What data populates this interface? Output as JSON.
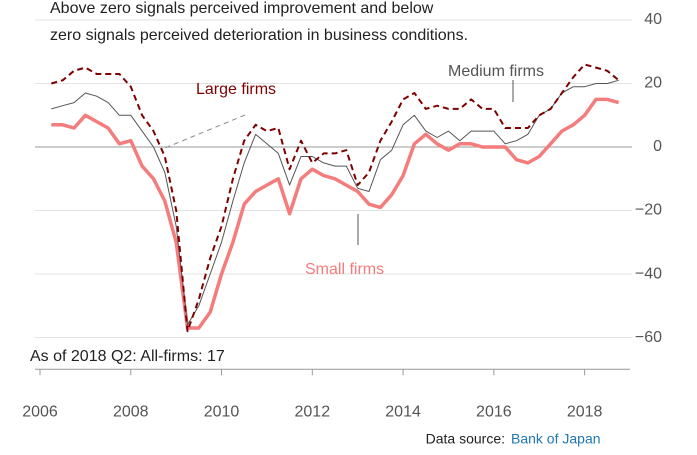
{
  "chart_data": {
    "type": "line",
    "subtitle": [
      "Above zero signals perceived improvement and below",
      "zero signals perceived deterioration in business conditions."
    ],
    "annotations": [
      "Large firms",
      "Medium firms",
      "Small firms",
      "As of 2018 Q2: All-firms: 17"
    ],
    "source_label": "Data source:",
    "source_link": "Bank of Japan",
    "x": [
      2006.25,
      2006.5,
      2006.75,
      2007,
      2007.25,
      2007.5,
      2007.75,
      2008,
      2008.25,
      2008.5,
      2008.75,
      2009,
      2009.25,
      2009.5,
      2009.75,
      2010,
      2010.25,
      2010.5,
      2010.75,
      2011,
      2011.25,
      2011.5,
      2011.75,
      2012,
      2012.25,
      2012.5,
      2012.75,
      2013,
      2013.25,
      2013.5,
      2013.75,
      2014,
      2014.25,
      2014.5,
      2014.75,
      2015,
      2015.25,
      2015.5,
      2015.75,
      2016,
      2016.25,
      2016.5,
      2016.75,
      2017,
      2017.25,
      2017.5,
      2017.75,
      2018,
      2018.25,
      2018.5,
      2018.75
    ],
    "series": [
      {
        "name": "Small firms",
        "color": "#f47c7c",
        "width": 3.5,
        "dash": false,
        "values": [
          7,
          7,
          6,
          10,
          8,
          6,
          1,
          2,
          -6,
          -10,
          -17,
          -30,
          -57,
          -57,
          -52,
          -40,
          -30,
          -18,
          -14,
          -12,
          -10,
          -21,
          -10,
          -7,
          -9,
          -10,
          -12,
          -14,
          -18,
          -19,
          -15,
          -9,
          1,
          4,
          1,
          -1,
          1,
          1,
          0,
          0,
          0,
          -4,
          -5,
          -3,
          1,
          5,
          7,
          10,
          15,
          15,
          14
        ]
      },
      {
        "name": "Medium firms",
        "color": "#555555",
        "width": 1,
        "dash": false,
        "values": [
          12,
          13,
          14,
          17,
          16,
          14,
          10,
          10,
          5,
          0,
          -8,
          -25,
          -56,
          -50,
          -40,
          -30,
          -17,
          -5,
          4,
          1,
          -2,
          -12,
          -3,
          -3,
          -5,
          -6,
          -6,
          -13,
          -14,
          -4,
          -1,
          7,
          10,
          5,
          3,
          5,
          2,
          5,
          5,
          5,
          1,
          2,
          4,
          10,
          12,
          17,
          19,
          19,
          20,
          20,
          21
        ]
      },
      {
        "name": "Large firms",
        "color": "#7f0000",
        "width": 2,
        "dash": true,
        "values": [
          20,
          21,
          24,
          25,
          23,
          23,
          23,
          19,
          10,
          5,
          -3,
          -20,
          -58,
          -48,
          -35,
          -25,
          -10,
          2,
          7,
          5,
          6,
          -7,
          2,
          -5,
          -2,
          -2,
          -1,
          -12,
          -8,
          2,
          8,
          15,
          17,
          12,
          13,
          12,
          12,
          15,
          12,
          12,
          6,
          6,
          6,
          10,
          12,
          17,
          22,
          26,
          25,
          24,
          21
        ]
      }
    ],
    "xlim": [
      2006,
      2019
    ],
    "xticks": [
      2006,
      2008,
      2010,
      2012,
      2014,
      2016,
      2018
    ],
    "ylim": [
      -70,
      40
    ],
    "yticks": [
      40,
      20,
      0,
      {
        "value": -20,
        "label": "−20"
      },
      {
        "value": -40,
        "label": "−40"
      },
      {
        "value": -60,
        "label": "−60"
      }
    ],
    "grid": true
  }
}
